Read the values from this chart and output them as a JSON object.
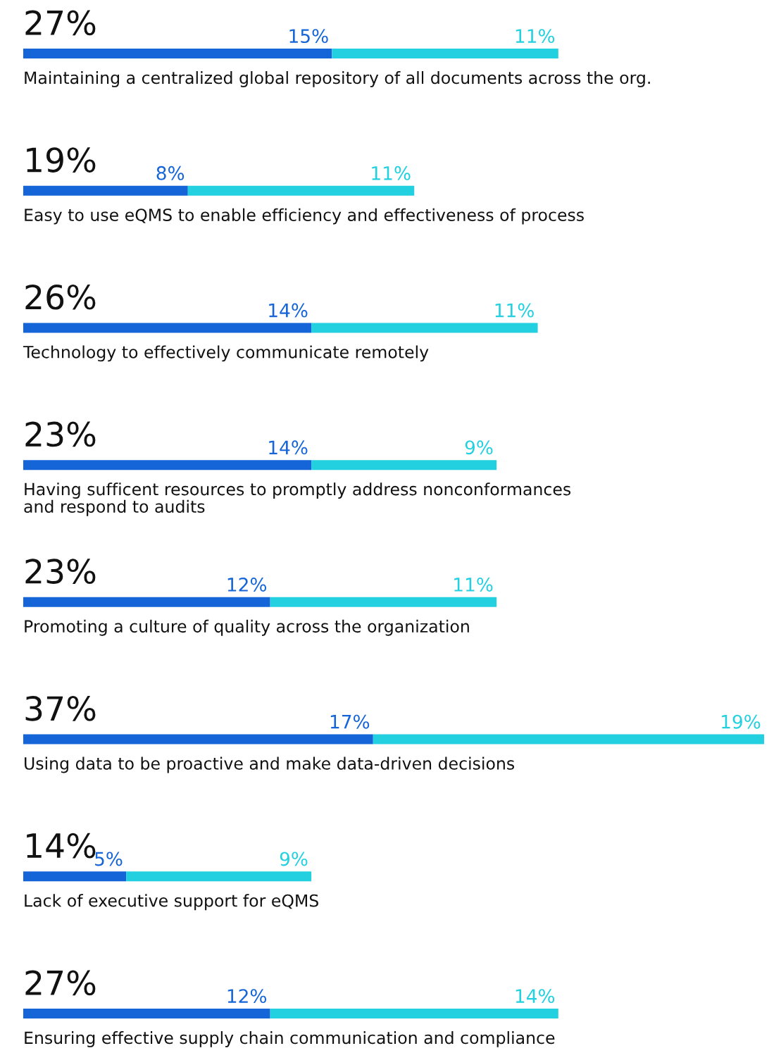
{
  "chart_data": {
    "type": "bar",
    "orientation": "horizontal",
    "stacked": true,
    "categories": [
      "Maintaining a centralized global repository of all documents across the org.",
      "Easy to use eQMS to enable efficiency and effectiveness of process",
      "Technology to effectively communicate remotely",
      "Having sufficent resources to promptly address nonconformances\nand respond to audits",
      "Promoting a culture of quality across the organization",
      "Using data to be proactive and make data-driven decisions",
      "Lack of executive support for eQMS",
      "Ensuring effective supply chain communication and compliance"
    ],
    "series": [
      {
        "color": "#1565d8",
        "values": [
          15,
          8,
          14,
          14,
          12,
          17,
          5,
          12
        ],
        "value_labels": [
          "15%",
          "8%",
          "14%",
          "14%",
          "12%",
          "17%",
          "5%",
          "12%"
        ]
      },
      {
        "color": "#22d0e0",
        "values": [
          11,
          11,
          11,
          9,
          11,
          19,
          9,
          14
        ],
        "value_labels": [
          "11%",
          "11%",
          "11%",
          "9%",
          "11%",
          "19%",
          "9%",
          "14%"
        ]
      }
    ],
    "totals": [
      "27%",
      "19%",
      "26%",
      "23%",
      "23%",
      "37%",
      "14%",
      "27%"
    ]
  }
}
